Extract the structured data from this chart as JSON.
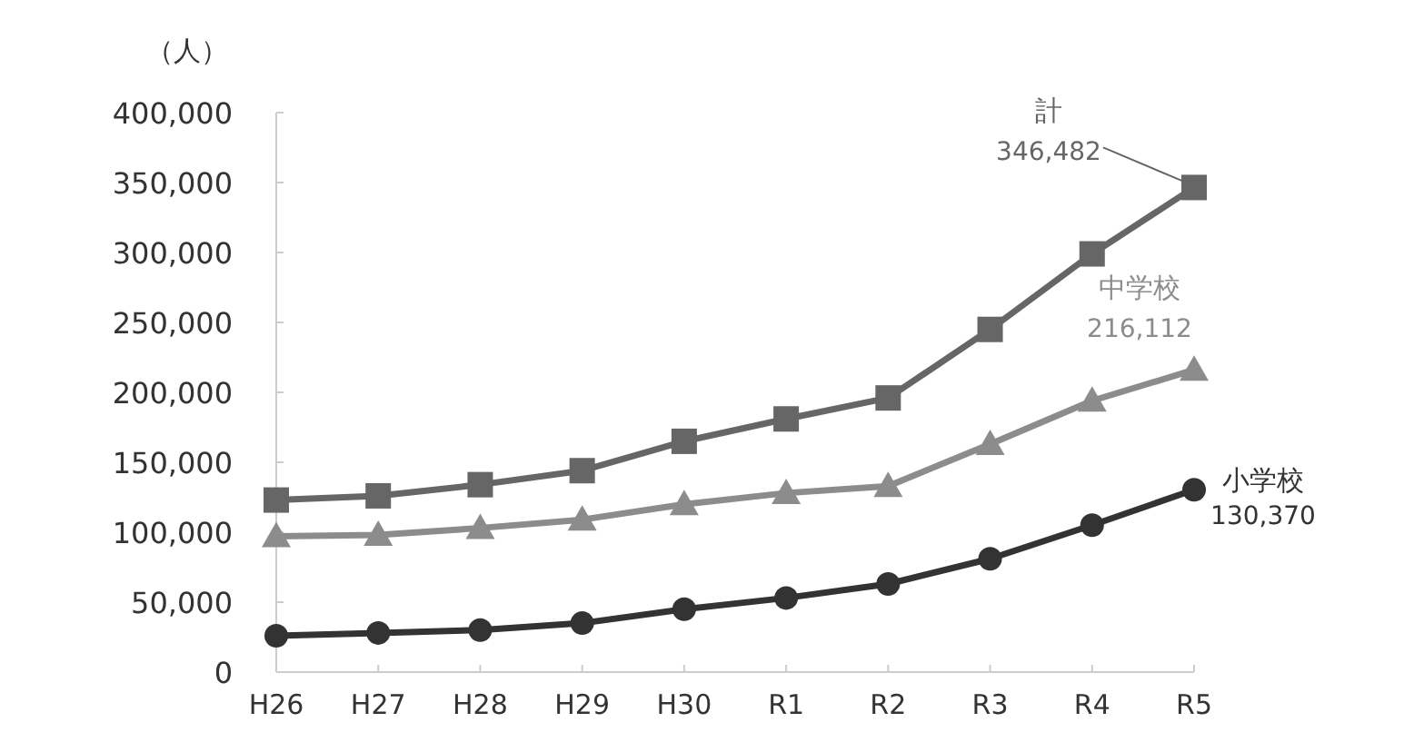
{
  "chart_data": {
    "type": "line",
    "ylabel": "（人）",
    "categories": [
      "H26",
      "H27",
      "H28",
      "H29",
      "H30",
      "R1",
      "R2",
      "R3",
      "R4",
      "R5"
    ],
    "ylim": [
      0,
      400000
    ],
    "yticks": [
      {
        "value": 0,
        "label": "0"
      },
      {
        "value": 50000,
        "label": "50,000"
      },
      {
        "value": 100000,
        "label": "100,000"
      },
      {
        "value": 150000,
        "label": "150,000"
      },
      {
        "value": 200000,
        "label": "200,000"
      },
      {
        "value": 250000,
        "label": "250,000"
      },
      {
        "value": 300000,
        "label": "300,000"
      },
      {
        "value": 350000,
        "label": "350,000"
      },
      {
        "value": 400000,
        "label": "400,000"
      }
    ],
    "grid": false,
    "line_style": "solid",
    "series": [
      {
        "name": "計",
        "color": "#666666",
        "marker": "square",
        "values": [
          123000,
          126000,
          134000,
          144000,
          165000,
          181000,
          196000,
          245000,
          299000,
          346482
        ],
        "value_labels": [
          null,
          null,
          null,
          null,
          null,
          null,
          null,
          null,
          null,
          "346,482"
        ]
      },
      {
        "name": "中学校",
        "color": "#8c8c8c",
        "marker": "triangle",
        "values": [
          97000,
          98000,
          103000,
          109000,
          120000,
          128000,
          133000,
          163000,
          194000,
          216112
        ],
        "value_labels": [
          null,
          null,
          null,
          null,
          null,
          null,
          null,
          null,
          null,
          "216,112"
        ]
      },
      {
        "name": "小学校",
        "color": "#333333",
        "marker": "circle",
        "values": [
          26000,
          28000,
          30000,
          35000,
          45000,
          53000,
          63000,
          81000,
          105000,
          130370
        ],
        "value_labels": [
          null,
          null,
          null,
          null,
          null,
          null,
          null,
          null,
          null,
          "130,370"
        ]
      }
    ]
  }
}
